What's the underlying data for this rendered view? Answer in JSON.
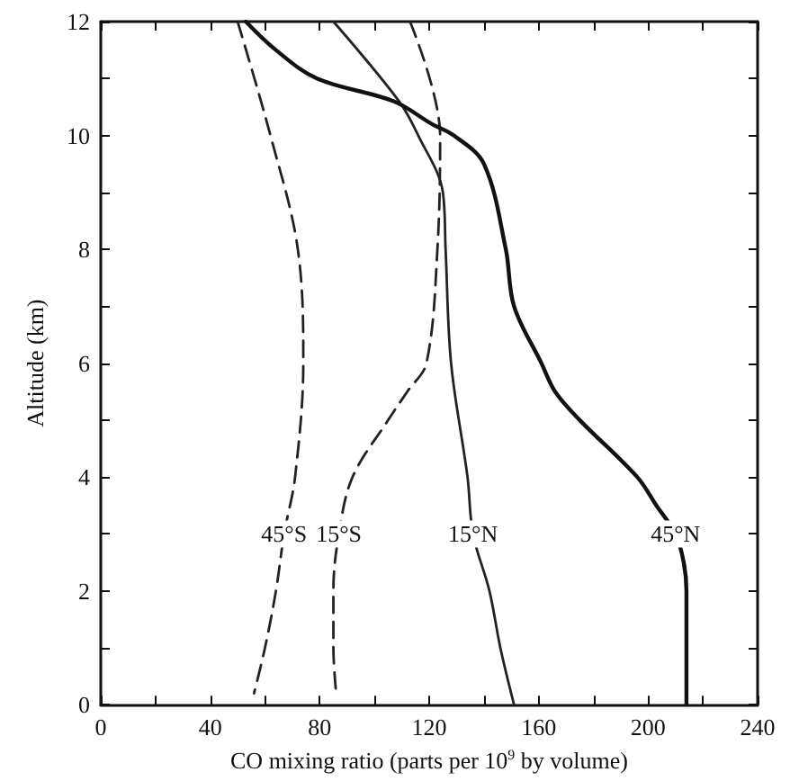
{
  "chart_data": {
    "type": "line",
    "xlabel": "CO mixing ratio (parts per 10$^{9}$ by volume)",
    "ylabel": "Altitude (km)",
    "xlim": [
      0,
      240
    ],
    "ylim": [
      0,
      12
    ],
    "xticks": [
      0,
      {
        "value": 20,
        "label": null
      },
      40,
      {
        "value": 60,
        "label": null
      },
      80,
      {
        "value": 100,
        "label": null
      },
      120,
      {
        "value": 140,
        "label": null
      },
      160,
      {
        "value": 180,
        "label": null
      },
      200,
      {
        "value": 220,
        "label": null
      },
      240
    ],
    "yticks": [
      0,
      {
        "value": 1,
        "label": null
      },
      2,
      {
        "value": 3,
        "label": null
      },
      4,
      {
        "value": 5,
        "label": null
      },
      6,
      {
        "value": 7,
        "label": null
      },
      8,
      {
        "value": 9,
        "label": null
      },
      10,
      {
        "value": 11,
        "label": null
      },
      12
    ],
    "grid": false,
    "marker": "none",
    "series": [
      {
        "name": "45°S",
        "color": "#222222",
        "line_style": "dashed",
        "x": [
          50,
          62,
          72,
          74,
          71,
          67,
          64,
          60,
          56
        ],
        "values": [
          12,
          10,
          8,
          6,
          4,
          3,
          2,
          1,
          0.2
        ]
      },
      {
        "name": "15°S",
        "color": "#222222",
        "line_style": "dashed",
        "x": [
          113,
          124,
          123,
          119,
          112,
          105,
          92,
          87,
          85,
          85,
          86
        ],
        "values": [
          12,
          10,
          8,
          6,
          5.5,
          5,
          4,
          3,
          2,
          1,
          0.2
        ]
      },
      {
        "name": "15°N",
        "color": "#222222",
        "line_style": "solid",
        "x": [
          85,
          109,
          116,
          125,
          126,
          128,
          134,
          136,
          142,
          146,
          151
        ],
        "values": [
          12,
          10.6,
          10,
          9,
          8,
          6,
          4,
          3,
          2,
          1,
          0
        ]
      },
      {
        "name": "45°N",
        "color": "#111111",
        "line_style": "solid",
        "x": [
          53,
          64,
          79,
          107,
          121,
          129,
          140,
          148,
          151,
          161,
          166,
          175,
          196,
          203,
          210,
          213,
          214,
          214
        ],
        "values": [
          12,
          11.5,
          11,
          10.6,
          10.2,
          10,
          9.5,
          8,
          7,
          6,
          5.5,
          5,
          4,
          3.5,
          3,
          2.5,
          2,
          0
        ]
      }
    ]
  }
}
